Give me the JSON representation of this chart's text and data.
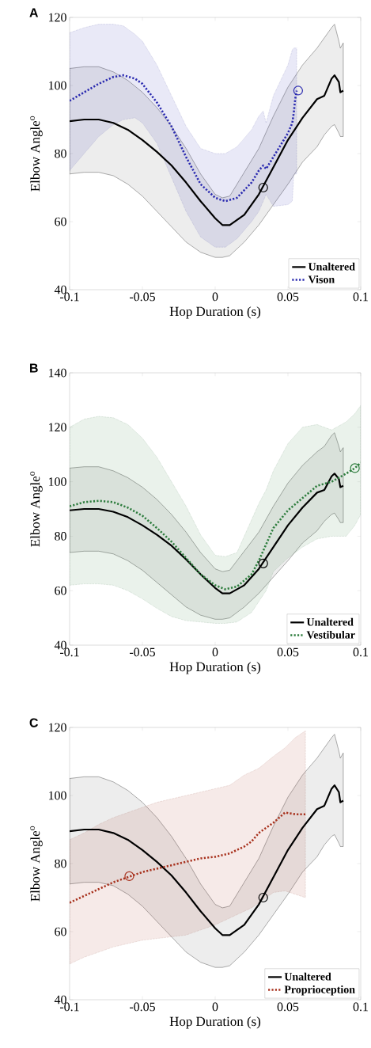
{
  "chart_data": [
    {
      "type": "line",
      "title": "A",
      "xlabel": "Hop Duration (s)",
      "ylabel": "Elbow Angle$^{o}$",
      "xlim": [
        -0.1,
        0.1
      ],
      "ylim": [
        40,
        120
      ],
      "xticks": [
        -0.1,
        -0.05,
        0,
        0.05,
        0.1
      ],
      "yticks": [
        40,
        60,
        80,
        100,
        120
      ],
      "grid": false,
      "legend": "bottom right",
      "series": [
        {
          "name": "Unaltered",
          "color": "#000000",
          "line_style": "solid",
          "x": [
            -0.1,
            -0.09,
            -0.08,
            -0.07,
            -0.06,
            -0.05,
            -0.04,
            -0.03,
            -0.02,
            -0.01,
            0,
            0.005,
            0.01,
            0.02,
            0.03,
            0.04,
            0.05,
            0.06,
            0.07,
            0.075,
            0.08,
            0.082,
            0.085,
            0.086,
            0.088
          ],
          "values": [
            89.5,
            90,
            90,
            89,
            87,
            84,
            80.5,
            76.5,
            71.5,
            66,
            61,
            59,
            59,
            62,
            68,
            76,
            84,
            90.5,
            96,
            97,
            102,
            103,
            101,
            98,
            98.5
          ],
          "lower": [
            74,
            74.5,
            74.5,
            73.5,
            71,
            67.5,
            63,
            58.5,
            54,
            51,
            49.5,
            49.5,
            50,
            54,
            59,
            65,
            71,
            77.5,
            82,
            85.5,
            88,
            88.5,
            86,
            85,
            85
          ],
          "upper": [
            105,
            105.5,
            105.5,
            104,
            101.5,
            98,
            93.5,
            88,
            81.5,
            74,
            68,
            67,
            67.5,
            74.5,
            81.5,
            91,
            99.5,
            106,
            111,
            114,
            117,
            118,
            113,
            111,
            112.5
          ]
        },
        {
          "name": "Vison",
          "color": "#2b2bb0",
          "line_style": "dotted",
          "x": [
            -0.1,
            -0.09,
            -0.08,
            -0.07,
            -0.063,
            -0.055,
            -0.05,
            -0.04,
            -0.03,
            -0.02,
            -0.01,
            0,
            0.007,
            0.015,
            0.025,
            0.03,
            0.033,
            0.035,
            0.04,
            0.05,
            0.053,
            0.054,
            0.055,
            0.056
          ],
          "values": [
            95.5,
            98,
            100.5,
            102.5,
            103,
            102,
            100.5,
            95,
            88,
            79,
            71,
            67,
            66,
            67,
            71.5,
            75,
            76.5,
            75.5,
            79,
            86,
            89,
            92,
            96,
            98.5
          ],
          "lower": [
            75,
            80,
            85,
            88.5,
            90,
            90.5,
            89,
            83,
            73,
            63,
            55.5,
            52.5,
            52.5,
            55,
            60,
            63,
            66,
            68,
            64.5,
            65,
            66,
            74,
            74,
            74
          ],
          "upper": [
            115.5,
            117,
            118,
            118,
            117.5,
            115,
            113,
            106,
            97,
            88,
            81.5,
            80,
            80,
            82,
            87,
            91,
            92.5,
            89,
            97,
            106,
            110.5,
            111,
            111,
            111
          ]
        },
        {
          "type": "scatter",
          "marker": "circle",
          "color": "#000000",
          "x": [
            0.033
          ],
          "values": [
            70
          ]
        },
        {
          "type": "scatter",
          "marker": "circle",
          "color": "#2b2bb0",
          "x": [
            0.057
          ],
          "values": [
            98.5
          ]
        }
      ]
    },
    {
      "type": "line",
      "title": "B",
      "xlabel": "Hop Duration (s)",
      "ylabel": "Elbow Angle$^{o}$",
      "xlim": [
        -0.1,
        0.1
      ],
      "ylim": [
        40,
        140
      ],
      "xticks": [
        -0.1,
        -0.05,
        0,
        0.05,
        0.1
      ],
      "yticks": [
        40,
        60,
        80,
        100,
        120,
        140
      ],
      "grid": false,
      "legend": "bottom right",
      "series": [
        {
          "name": "Unaltered",
          "color": "#000000",
          "line_style": "solid",
          "x": [
            -0.1,
            -0.09,
            -0.08,
            -0.07,
            -0.06,
            -0.05,
            -0.04,
            -0.03,
            -0.02,
            -0.01,
            0,
            0.005,
            0.01,
            0.02,
            0.03,
            0.04,
            0.05,
            0.06,
            0.07,
            0.075,
            0.08,
            0.082,
            0.085,
            0.086,
            0.088
          ],
          "values": [
            89.5,
            90,
            90,
            89,
            87,
            84,
            80.5,
            76.5,
            71.5,
            66,
            61,
            59,
            59,
            62,
            68,
            76,
            84,
            90.5,
            96,
            97,
            102,
            103,
            101,
            98,
            98.5
          ],
          "lower": [
            74,
            74.5,
            74.5,
            73.5,
            71,
            67.5,
            63,
            58.5,
            54,
            51,
            49.5,
            49.5,
            50,
            54,
            59,
            65,
            71,
            77.5,
            82,
            85.5,
            88,
            88.5,
            86,
            85,
            85
          ],
          "upper": [
            105,
            105.5,
            105.5,
            104,
            101.5,
            98,
            93.5,
            88,
            81.5,
            74,
            68,
            67,
            67.5,
            74.5,
            81.5,
            91,
            99.5,
            106,
            111,
            113,
            117,
            118,
            113,
            111,
            112.5
          ]
        },
        {
          "name": "Vestibular",
          "color": "#2e7d3e",
          "line_style": "dotted",
          "x": [
            -0.1,
            -0.09,
            -0.08,
            -0.07,
            -0.06,
            -0.05,
            -0.04,
            -0.03,
            -0.02,
            -0.01,
            0,
            0.007,
            0.015,
            0.025,
            0.03,
            0.035,
            0.04,
            0.05,
            0.06,
            0.07,
            0.08,
            0.09,
            0.096,
            0.1
          ],
          "values": [
            91,
            92.5,
            93,
            92.5,
            90.5,
            87.5,
            83,
            78,
            72,
            66,
            62,
            60.5,
            61.5,
            66,
            71,
            77,
            83,
            89.5,
            94,
            98.5,
            100,
            103,
            105,
            107
          ],
          "lower": [
            62,
            62.5,
            62.5,
            62,
            60,
            57,
            53.5,
            50.5,
            49,
            48.5,
            48,
            48,
            48.5,
            52,
            56,
            60,
            67,
            72,
            76,
            79,
            80,
            80,
            84,
            88
          ],
          "upper": [
            120,
            123,
            124,
            123.5,
            121,
            116,
            109,
            100,
            91,
            80.5,
            73,
            72.5,
            74,
            86,
            92,
            97,
            104,
            114,
            120,
            121,
            119,
            122,
            125,
            128
          ]
        },
        {
          "type": "scatter",
          "marker": "circle",
          "color": "#000000",
          "x": [
            0.033
          ],
          "values": [
            70
          ]
        },
        {
          "type": "scatter",
          "marker": "circle",
          "color": "#2e7d3e",
          "x": [
            0.096
          ],
          "values": [
            105
          ]
        }
      ]
    },
    {
      "type": "line",
      "title": "C",
      "xlabel": "Hop Duration (s)",
      "ylabel": "Elbow Angle$^{o}$",
      "xlim": [
        -0.1,
        0.1
      ],
      "ylim": [
        40,
        120
      ],
      "xticks": [
        -0.1,
        -0.05,
        0,
        0.05,
        0.1
      ],
      "yticks": [
        40,
        60,
        80,
        100,
        120
      ],
      "grid": false,
      "legend": "bottom right",
      "series": [
        {
          "name": "Unaltered",
          "color": "#000000",
          "line_style": "solid",
          "x": [
            -0.1,
            -0.09,
            -0.08,
            -0.07,
            -0.06,
            -0.05,
            -0.04,
            -0.03,
            -0.02,
            -0.01,
            0,
            0.005,
            0.01,
            0.02,
            0.03,
            0.04,
            0.05,
            0.06,
            0.07,
            0.075,
            0.08,
            0.082,
            0.085,
            0.086,
            0.088
          ],
          "values": [
            89.5,
            90,
            90,
            89,
            87,
            84,
            80.5,
            76.5,
            71.5,
            66,
            61,
            59,
            59,
            62,
            68,
            76,
            84,
            90.5,
            96,
            97,
            102,
            103,
            101,
            98,
            98.5
          ],
          "lower": [
            74,
            74.5,
            74.5,
            73.5,
            71,
            67.5,
            63,
            58.5,
            54,
            51,
            49.5,
            49.5,
            50,
            54,
            59,
            65,
            71,
            77.5,
            82,
            85.5,
            88,
            88.5,
            86,
            85,
            85
          ],
          "upper": [
            105,
            105.5,
            105.5,
            104,
            101.5,
            98,
            93.5,
            88,
            81.5,
            74,
            68,
            67,
            67.5,
            74.5,
            81.5,
            91,
            99.5,
            106,
            111,
            114,
            117,
            118,
            113,
            111,
            112.5
          ]
        },
        {
          "name": "Proprioception",
          "color": "#a8321e",
          "line_style": "dotted",
          "x": [
            -0.1,
            -0.09,
            -0.08,
            -0.07,
            -0.06,
            -0.05,
            -0.04,
            -0.03,
            -0.02,
            -0.01,
            0,
            0.01,
            0.02,
            0.025,
            0.03,
            0.04,
            0.048,
            0.055,
            0.062
          ],
          "values": [
            68.5,
            70.5,
            72.5,
            74.5,
            76,
            77.5,
            78.5,
            79.5,
            80.5,
            81.5,
            82,
            83,
            85,
            86.5,
            89,
            92,
            95,
            94.5,
            94.5
          ],
          "lower": [
            50.5,
            52.5,
            54,
            55.5,
            56.5,
            57.5,
            58,
            58.5,
            59,
            60.5,
            62,
            64,
            66,
            67,
            68.5,
            71.5,
            72,
            71,
            70
          ],
          "upper": [
            87,
            89,
            91.5,
            93.5,
            95,
            96.5,
            98,
            99,
            100,
            101,
            102,
            103,
            106,
            107,
            108,
            111.5,
            114,
            117,
            119
          ]
        },
        {
          "type": "scatter",
          "marker": "circle",
          "color": "#000000",
          "x": [
            0.033
          ],
          "values": [
            70
          ]
        },
        {
          "type": "scatter",
          "marker": "circle",
          "color": "#a8321e",
          "x": [
            -0.059
          ],
          "values": [
            76.3
          ]
        }
      ]
    }
  ]
}
